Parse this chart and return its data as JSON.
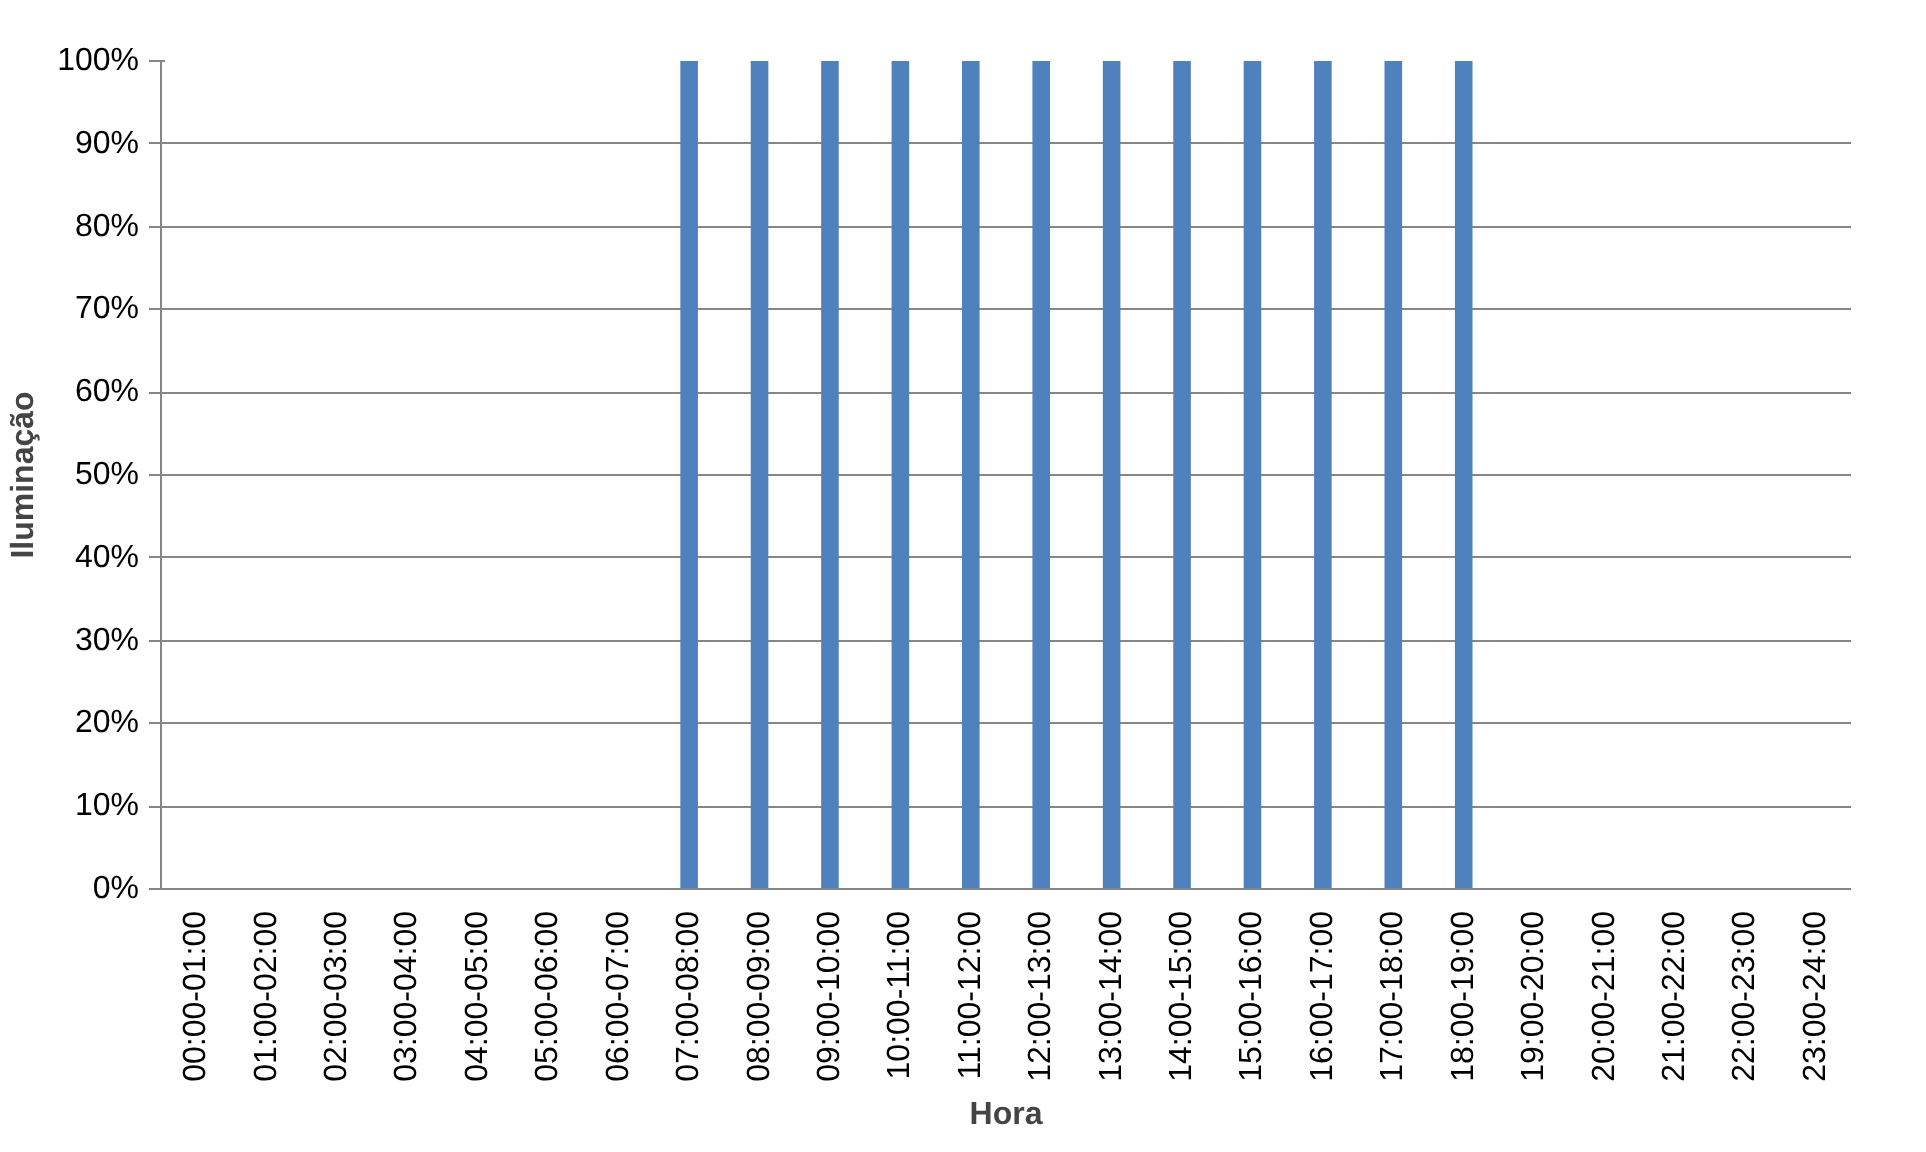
{
  "chart_data": {
    "type": "bar",
    "xlabel": "Hora",
    "ylabel": "Iluminação",
    "categories": [
      "00:00-01:00",
      "01:00-02:00",
      "02:00-03:00",
      "03:00-04:00",
      "04:00-05:00",
      "05:00-06:00",
      "06:00-07:00",
      "07:00-08:00",
      "08:00-09:00",
      "09:00-10:00",
      "10:00-11:00",
      "11:00-12:00",
      "12:00-13:00",
      "13:00-14:00",
      "14:00-15:00",
      "15:00-16:00",
      "16:00-17:00",
      "17:00-18:00",
      "18:00-19:00",
      "19:00-20:00",
      "20:00-21:00",
      "21:00-22:00",
      "22:00-23:00",
      "23:00-24:00"
    ],
    "values": [
      0,
      0,
      0,
      0,
      0,
      0,
      0,
      100,
      100,
      100,
      100,
      100,
      100,
      100,
      100,
      100,
      100,
      100,
      100,
      0,
      0,
      0,
      0,
      0
    ],
    "color": "#4f81bd",
    "ylim": [
      0,
      100
    ],
    "yticks": [
      {
        "value": 0,
        "label": "0%"
      },
      {
        "value": 10,
        "label": "10%"
      },
      {
        "value": 20,
        "label": "20%"
      },
      {
        "value": 30,
        "label": "30%"
      },
      {
        "value": 40,
        "label": "40%"
      },
      {
        "value": 50,
        "label": "50%"
      },
      {
        "value": 60,
        "label": "60%"
      },
      {
        "value": 70,
        "label": "70%"
      },
      {
        "value": 80,
        "label": "80%"
      },
      {
        "value": 90,
        "label": "90%"
      },
      {
        "value": 100,
        "label": "100%"
      }
    ],
    "grid": "y"
  }
}
